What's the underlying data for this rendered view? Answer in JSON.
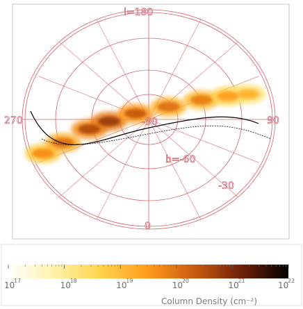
{
  "chart_data": {
    "type": "heatmap",
    "projection": "orthographic polar (galactic), centred on b = -90",
    "grid_labels": {
      "l_top": "l=180",
      "l_left": "270",
      "l_right": "90",
      "l_bottom": "0",
      "b_inner": "b=-60",
      "b_outer": "-30",
      "centre": "-90"
    },
    "structure_points": [
      {
        "x": -8.0,
        "y": -3.5,
        "logN": 19.6
      },
      {
        "x": -6.5,
        "y": -2.4,
        "logN": 20.0
      },
      {
        "x": -4.5,
        "y": -1.0,
        "logN": 20.5
      },
      {
        "x": -3.0,
        "y": -0.2,
        "logN": 20.7
      },
      {
        "x": -1.0,
        "y": 0.6,
        "logN": 20.3
      },
      {
        "x": 1.5,
        "y": 1.3,
        "logN": 20.0
      },
      {
        "x": 4.0,
        "y": 2.0,
        "logN": 19.8
      },
      {
        "x": 6.0,
        "y": 2.4,
        "logN": 19.4
      },
      {
        "x": 7.5,
        "y": 2.6,
        "logN": 19.1
      }
    ],
    "colorbar": {
      "label": "Column Density (cm⁻²)",
      "scale": "log",
      "range": [
        17,
        22
      ],
      "ticks": [
        {
          "base": "10",
          "exp": "17"
        },
        {
          "base": "10",
          "exp": "18"
        },
        {
          "base": "10",
          "exp": "19"
        },
        {
          "base": "10",
          "exp": "20"
        },
        {
          "base": "10",
          "exp": "21"
        },
        {
          "base": "10",
          "exp": "22"
        }
      ],
      "colors": [
        "#ffffff",
        "#fff2a8",
        "#ffd24a",
        "#ff9a1a",
        "#c85a10",
        "#6e2008",
        "#000000"
      ]
    },
    "colors": {
      "grid": "#d9606a",
      "track": "#000000",
      "colormap": "white-yellow-orange-brown-black"
    }
  }
}
